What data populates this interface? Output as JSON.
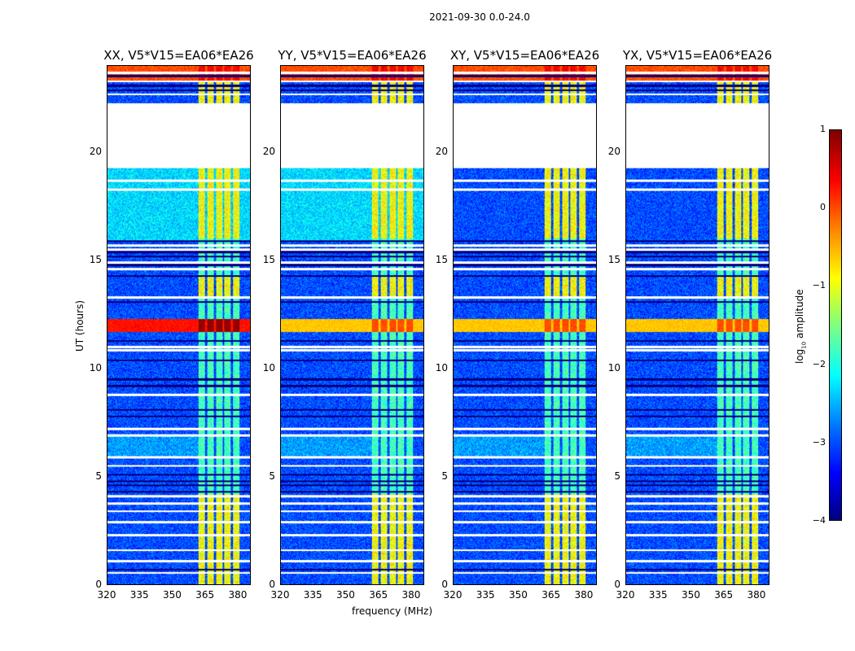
{
  "suptitle": "2021-09-30 0.0-24.0",
  "chart_data": {
    "type": "heatmap",
    "xlabel": "frequency (MHz)",
    "ylabel": "UT (hours)",
    "xlim": [
      320,
      386
    ],
    "ylim": [
      0,
      24
    ],
    "xticks": [
      "320",
      "335",
      "350",
      "365",
      "380"
    ],
    "yticks": [
      "0",
      "5",
      "10",
      "15",
      "20"
    ],
    "panels": [
      {
        "title": "XX, V5*V15=EA06*EA26"
      },
      {
        "title": "YY, V5*V15=EA06*EA26"
      },
      {
        "title": "XY, V5*V15=EA06*EA26"
      },
      {
        "title": "YX, V5*V15=EA06*EA26"
      }
    ],
    "colorbar": {
      "label": "log",
      "label_sub": "10",
      "label_rest": " amplitude",
      "range": [
        -4,
        1
      ],
      "ticks": [
        "1",
        "0",
        "−1",
        "−2",
        "−3",
        "−4"
      ],
      "colormap": "jet"
    },
    "flagged_ut_hours": [
      [
        19.3,
        22.3
      ]
    ],
    "rfi_channels_mhz": [
      [
        362,
        365
      ],
      [
        366,
        369
      ],
      [
        370,
        373
      ],
      [
        374,
        377
      ],
      [
        378,
        381
      ]
    ],
    "baseline_log_amplitude": -3,
    "rfi_log_amplitude": -1
  }
}
